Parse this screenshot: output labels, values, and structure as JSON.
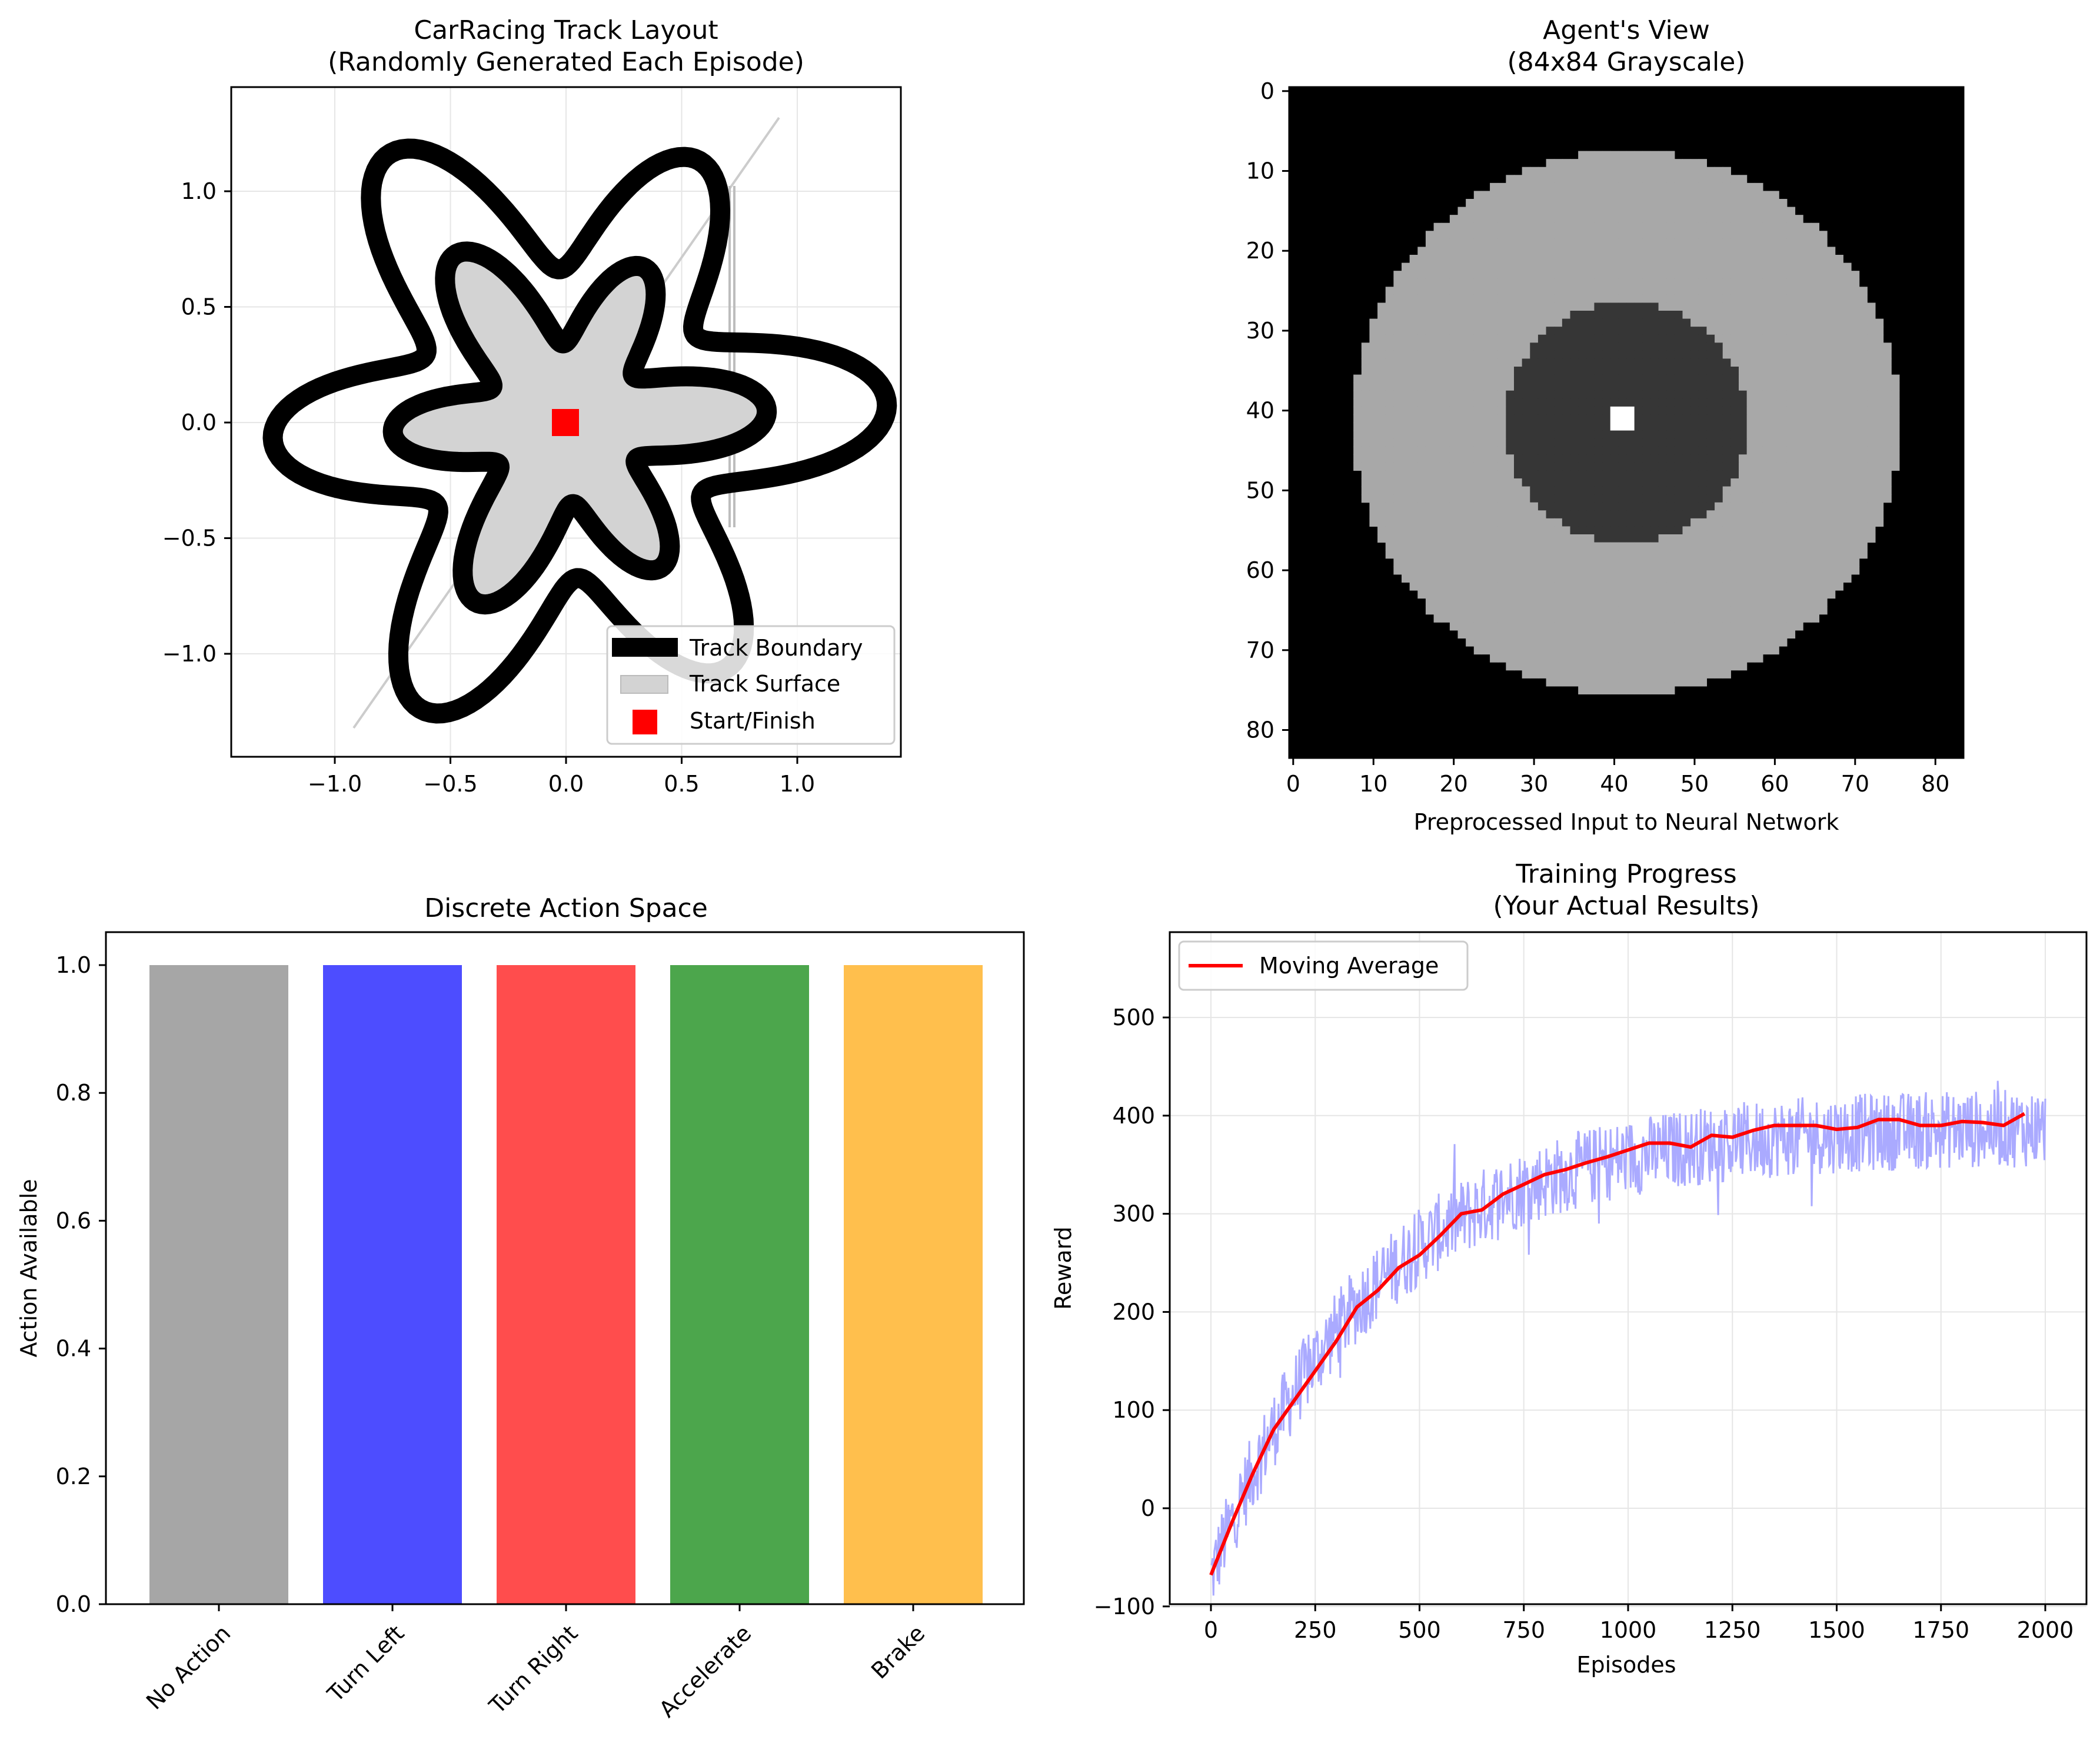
{
  "chart_data": [
    {
      "type": "line",
      "title": "CarRacing Track Layout\n(Randomly Generated Each Episode)",
      "xlabel": "",
      "ylabel": "",
      "xlim": [
        -1.45,
        1.45
      ],
      "ylim": [
        -1.45,
        1.45
      ],
      "xticks": [
        "−1.0",
        "−0.5",
        "0.0",
        "0.5",
        "1.0"
      ],
      "yticks": [
        "1.0",
        "0.5",
        "0.0",
        "−0.5",
        "−1.0"
      ],
      "grid": true,
      "legend_position": "bottom-right",
      "legend": [
        "Track Boundary",
        "Track Surface",
        "Start/Finish"
      ],
      "series": [
        {
          "name": "Track Boundary",
          "shape": "six-lobed closed curve, outer radius ~1.0 ±0.35",
          "color": "#000000"
        },
        {
          "name": "Track Surface",
          "shape": "six-lobed filled star, radius ~0.6 ±0.25",
          "color": "#d3d3d3"
        },
        {
          "name": "Start/Finish",
          "x": [
            0.0
          ],
          "y": [
            0.0
          ],
          "color": "#ff0000"
        }
      ],
      "reference_line": {
        "x": [
          -0.92,
          0.92
        ],
        "y": [
          -1.32,
          1.32
        ],
        "color": "#cccccc"
      }
    },
    {
      "type": "heatmap",
      "title": "Agent's View\n(84x84 Grayscale)",
      "xlabel": "Preprocessed Input to Neural Network",
      "ylabel": "",
      "size": [
        84,
        84
      ],
      "xticks": [
        "0",
        "10",
        "20",
        "30",
        "40",
        "50",
        "60",
        "70",
        "80"
      ],
      "yticks": [
        "0",
        "10",
        "20",
        "30",
        "40",
        "50",
        "60",
        "70",
        "80"
      ],
      "regions": [
        {
          "name": "background",
          "color": "#000000"
        },
        {
          "name": "track ring",
          "center": [
            42,
            42
          ],
          "outer_radius": 34,
          "color": "#a8a8a8"
        },
        {
          "name": "inner area",
          "center": [
            42,
            42
          ],
          "radius": 15,
          "color": "#363636"
        },
        {
          "name": "car",
          "x": [
            40,
            43
          ],
          "y": [
            40,
            43
          ],
          "color": "#ffffff"
        }
      ]
    },
    {
      "type": "bar",
      "title": "Discrete Action Space",
      "xlabel": "",
      "ylabel": "Action Available",
      "categories": [
        "No Action",
        "Turn Left",
        "Turn Right",
        "Accelerate",
        "Brake"
      ],
      "values": [
        1.0,
        1.0,
        1.0,
        1.0,
        1.0
      ],
      "colors": [
        "#a6a6a6",
        "#4d4dff",
        "#ff4d4d",
        "#4ca64c",
        "#ffbf4d"
      ],
      "ylim": [
        0,
        1.05
      ],
      "yticks": [
        "0.0",
        "0.2",
        "0.4",
        "0.6",
        "0.8",
        "1.0"
      ]
    },
    {
      "type": "line",
      "title": "Training Progress\n(Your Actual Results)",
      "xlabel": "Episodes",
      "ylabel": "Reward",
      "xlim": [
        -100,
        2100
      ],
      "ylim": [
        -180,
        510
      ],
      "xticks": [
        "0",
        "250",
        "500",
        "750",
        "1000",
        "1250",
        "1500",
        "1750",
        "2000"
      ],
      "yticks": [
        "500",
        "400",
        "300",
        "200",
        "100",
        "0",
        "−100"
      ],
      "grid": true,
      "legend_position": "top-left",
      "legend": [
        "Moving Average"
      ],
      "series": [
        {
          "name": "Moving Average",
          "color": "#ff0000",
          "x": [
            0,
            50,
            100,
            150,
            200,
            250,
            300,
            350,
            400,
            450,
            500,
            550,
            600,
            650,
            700,
            750,
            800,
            850,
            900,
            950,
            1000,
            1050,
            1100,
            1150,
            1200,
            1250,
            1300,
            1350,
            1400,
            1450,
            1500,
            1550,
            1600,
            1650,
            1700,
            1750,
            1800,
            1850,
            1900,
            1950
          ],
          "y": [
            -68,
            -15,
            35,
            80,
            110,
            140,
            170,
            205,
            222,
            245,
            258,
            278,
            300,
            304,
            320,
            330,
            340,
            345,
            352,
            358,
            365,
            372,
            372,
            368,
            380,
            378,
            385,
            390,
            390,
            390,
            386,
            388,
            396,
            396,
            390,
            390,
            394,
            393,
            390,
            402
          ]
        },
        {
          "name": "",
          "color": "#aaaaff",
          "trend": "raw episode rewards, y ≈ 390 − 460·exp(−episode/380) with noise ±40",
          "x": [
            0,
            2000
          ]
        }
      ]
    }
  ]
}
